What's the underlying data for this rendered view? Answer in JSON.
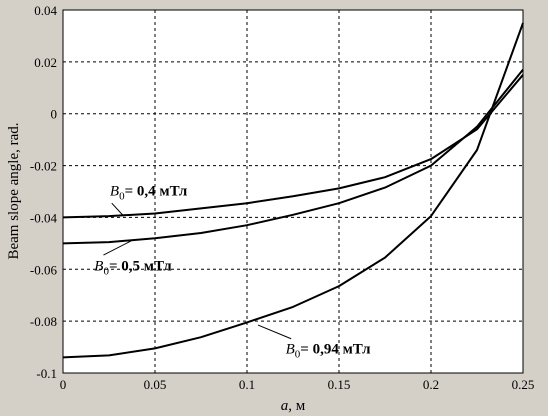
{
  "chart_data": {
    "type": "line",
    "title": "",
    "xlabel": "a, м",
    "ylabel": "Beam slope angle, rad.",
    "xlim": [
      0,
      0.25
    ],
    "ylim": [
      -0.1,
      0.04
    ],
    "x_ticks": [
      "0",
      "0.05",
      "0.1",
      "0.15",
      "0.2",
      "0.25"
    ],
    "y_ticks": [
      "0.04",
      "0.02",
      "0",
      "-0.02",
      "-0.04",
      "-0.06",
      "-0.08",
      "-0.1"
    ],
    "grid": true,
    "x": [
      0,
      0.025,
      0.05,
      0.075,
      0.1,
      0.125,
      0.15,
      0.175,
      0.2,
      0.225,
      0.25
    ],
    "series": [
      {
        "name": "B0 = 0,4 мТл",
        "values": [
          -0.04,
          -0.0395,
          -0.0385,
          -0.0365,
          -0.0345,
          -0.0318,
          -0.0288,
          -0.0245,
          -0.0175,
          -0.006,
          0.015
        ]
      },
      {
        "name": "B0 = 0,5 мТл",
        "values": [
          -0.05,
          -0.0495,
          -0.048,
          -0.046,
          -0.043,
          -0.039,
          -0.0345,
          -0.0285,
          -0.02,
          -0.005,
          0.017
        ]
      },
      {
        "name": "B0 = 0,94 мТл",
        "values": [
          -0.094,
          -0.0932,
          -0.0905,
          -0.0862,
          -0.0805,
          -0.0745,
          -0.0665,
          -0.0555,
          -0.0395,
          -0.014,
          0.035
        ]
      }
    ],
    "annotations": [
      {
        "sub": "0",
        "text": "= 0,4 мТл",
        "x": 0.0255,
        "y": -0.0315
      },
      {
        "sub": "0",
        "text": "= 0,5 мТл",
        "x": 0.017,
        "y": -0.0605
      },
      {
        "sub": "0",
        "text": "= 0,94 мТл",
        "x": 0.121,
        "y": -0.0925
      }
    ],
    "pointers": [
      {
        "from": [
          0.0265,
          -0.0345
        ],
        "to": [
          0.033,
          -0.0395
        ]
      },
      {
        "from": [
          0.022,
          -0.0545
        ],
        "to": [
          0.038,
          -0.0487
        ]
      },
      {
        "from": [
          0.124,
          -0.0868
        ],
        "to": [
          0.106,
          -0.0815
        ]
      }
    ],
    "colors": {
      "line": "#000000",
      "background": "#d4d0c8",
      "plot_bg": "#ffffff",
      "grid": "#000000"
    }
  }
}
